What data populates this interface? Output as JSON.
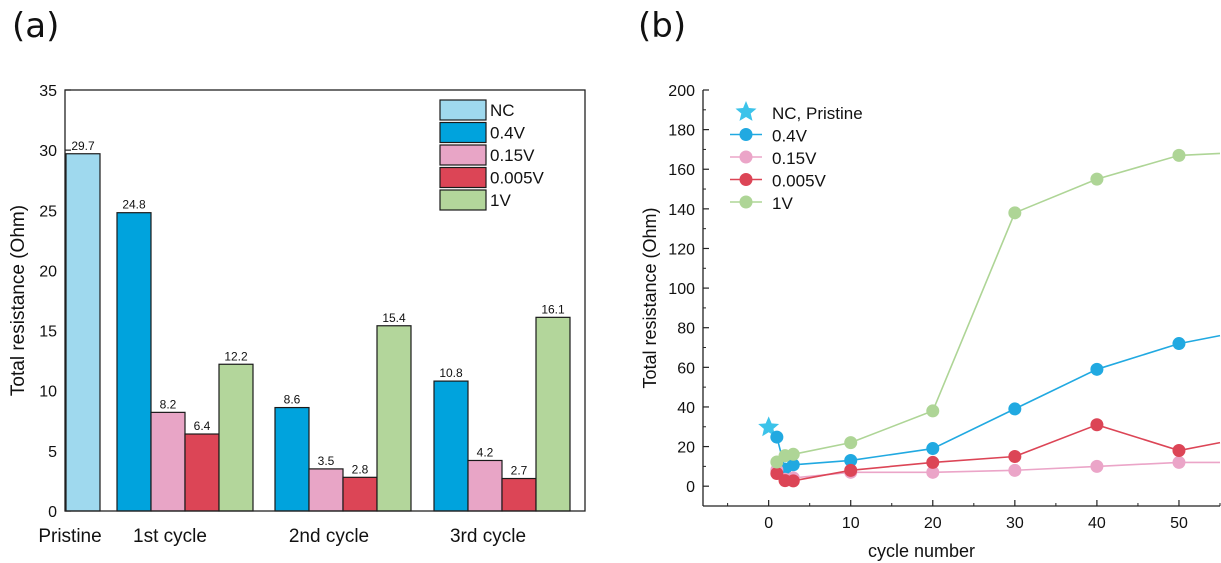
{
  "panel_a_label": "(a)",
  "panel_b_label": "(b)",
  "chart_data": [
    {
      "type": "bar",
      "ylabel": "Total resistance (Ohm)",
      "xlabel": "",
      "ylim": [
        0,
        35
      ],
      "yticks": [
        0,
        5,
        10,
        15,
        20,
        25,
        30,
        35
      ],
      "categories": [
        "Pristine",
        "1st cycle",
        "2nd cycle",
        "3rd cycle"
      ],
      "legend_position": "top-right",
      "series": [
        {
          "name": "NC",
          "color": "#9fd9ee",
          "values": [
            29.7,
            null,
            null,
            null
          ],
          "labels": [
            "29.7",
            null,
            null,
            null
          ]
        },
        {
          "name": "0.4V",
          "color": "#00a3dd",
          "values": [
            null,
            24.8,
            8.6,
            10.8
          ],
          "labels": [
            null,
            "24.8",
            "8.6",
            "10.8"
          ]
        },
        {
          "name": "0.15V",
          "color": "#e8a5c6",
          "values": [
            null,
            8.2,
            3.5,
            4.2
          ],
          "labels": [
            null,
            "8.2",
            "3.5",
            "4.2"
          ]
        },
        {
          "name": "0.005V",
          "color": "#dc4556",
          "values": [
            null,
            6.4,
            2.8,
            2.7
          ],
          "labels": [
            null,
            "6.4",
            "2.8",
            "2.7"
          ]
        },
        {
          "name": "1V",
          "color": "#b3d69b",
          "values": [
            null,
            12.2,
            15.4,
            16.1
          ],
          "labels": [
            null,
            "12.2",
            "15.4",
            "16.1"
          ]
        }
      ]
    },
    {
      "type": "line",
      "xlabel": "cycle number",
      "ylabel": "Total resistance (Ohm)",
      "xlim": [
        -8,
        55
      ],
      "ylim": [
        -10,
        200
      ],
      "xticks": [
        0,
        10,
        20,
        30,
        40,
        50
      ],
      "yticks": [
        0,
        20,
        40,
        60,
        80,
        100,
        120,
        140,
        160,
        180,
        200
      ],
      "legend_position": "top-left",
      "series": [
        {
          "name": "NC, Pristine",
          "marker": "star",
          "color": "#3cc3ea",
          "x": [
            0
          ],
          "y": [
            29.7
          ]
        },
        {
          "name": "0.4V",
          "marker": "circle",
          "color": "#21a9e1",
          "x": [
            1,
            2,
            3,
            10,
            20,
            30,
            40,
            50,
            55
          ],
          "y": [
            24.8,
            8.6,
            10.8,
            13,
            19,
            39,
            59,
            72,
            76
          ]
        },
        {
          "name": "0.15V",
          "marker": "circle",
          "color": "#eba5c8",
          "x": [
            1,
            2,
            3,
            10,
            20,
            30,
            40,
            50,
            55
          ],
          "y": [
            8.2,
            3.5,
            4.2,
            7,
            7,
            8,
            10,
            12,
            12
          ]
        },
        {
          "name": "0.005V",
          "marker": "circle",
          "color": "#dc4556",
          "x": [
            1,
            2,
            3,
            10,
            20,
            30,
            40,
            50,
            55
          ],
          "y": [
            6.4,
            2.8,
            2.7,
            8,
            12,
            15,
            31,
            18,
            22
          ]
        },
        {
          "name": "1V",
          "marker": "circle",
          "color": "#aed596",
          "x": [
            1,
            2,
            3,
            10,
            20,
            30,
            40,
            50,
            55
          ],
          "y": [
            12.2,
            15.4,
            16.1,
            22,
            38,
            138,
            155,
            167,
            168
          ]
        }
      ]
    }
  ]
}
